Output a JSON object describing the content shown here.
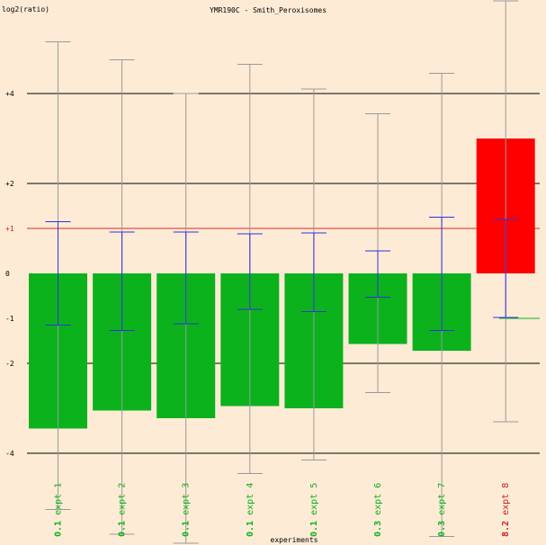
{
  "chart_data": {
    "type": "bar",
    "title": "YMR190C - Smith_Peroxisomes",
    "ylabel": "log2(ratio)",
    "xlabel": "experiments",
    "ylim": [
      -5.97,
      6.06
    ],
    "y_tick_labels": [
      {
        "label": "+4",
        "value": 4
      },
      {
        "label": "+2",
        "value": 2
      },
      {
        "label": "+1",
        "value": 1
      },
      {
        "label": "0",
        "value": 0
      },
      {
        "label": "-1",
        "value": -1
      },
      {
        "label": "-2",
        "value": -2
      },
      {
        "label": "-4",
        "value": -4
      }
    ],
    "grid_lines": [
      4,
      2,
      -2,
      -4
    ],
    "categories": [
      "expt 1",
      "expt 2",
      "expt 3",
      "expt 4",
      "expt 5",
      "expt 6",
      "expt 7",
      "expt 8"
    ],
    "category_prefixes": [
      "0.1",
      "0.1",
      "0.1",
      "0.1",
      "0.1",
      "0.3",
      "0.3",
      "8.2"
    ],
    "values": [
      -3.45,
      -3.05,
      -3.22,
      -2.95,
      -3.0,
      -1.57,
      -1.72,
      3.0
    ],
    "error_gray": [
      {
        "low": -5.25,
        "high": 5.15
      },
      {
        "low": -5.8,
        "high": 4.75
      },
      {
        "low": -6.0,
        "high": 4.0
      },
      {
        "low": -4.45,
        "high": 4.65
      },
      {
        "low": -4.15,
        "high": 4.1
      },
      {
        "low": -2.65,
        "high": 3.55
      },
      {
        "low": -5.85,
        "high": 4.45
      },
      {
        "low": -3.3,
        "high": 6.06
      }
    ],
    "error_blue": [
      {
        "low": -1.15,
        "high": 1.15
      },
      {
        "low": -1.27,
        "high": 0.92
      },
      {
        "low": -1.12,
        "high": 0.92
      },
      {
        "low": -0.8,
        "high": 0.88
      },
      {
        "low": -0.85,
        "high": 0.9
      },
      {
        "low": -0.53,
        "high": 0.5
      },
      {
        "low": -1.27,
        "high": 1.25
      },
      {
        "low": -0.98,
        "high": 1.2
      }
    ],
    "colors": {
      "background": "#fdebd5",
      "down_bar": "#0cb21c",
      "up_bar": "#ff0000",
      "grid": "#000000",
      "ref_plus1": "#e02a1a",
      "ref_minus1": "#0cb21c",
      "error_gray": "#9a9a9a",
      "error_blue": "#3030e0",
      "label_down": "#0cb21c",
      "label_up": "#cc1f1f",
      "axis_text": "#000000",
      "plus1_text": "#cc1f1f"
    }
  }
}
